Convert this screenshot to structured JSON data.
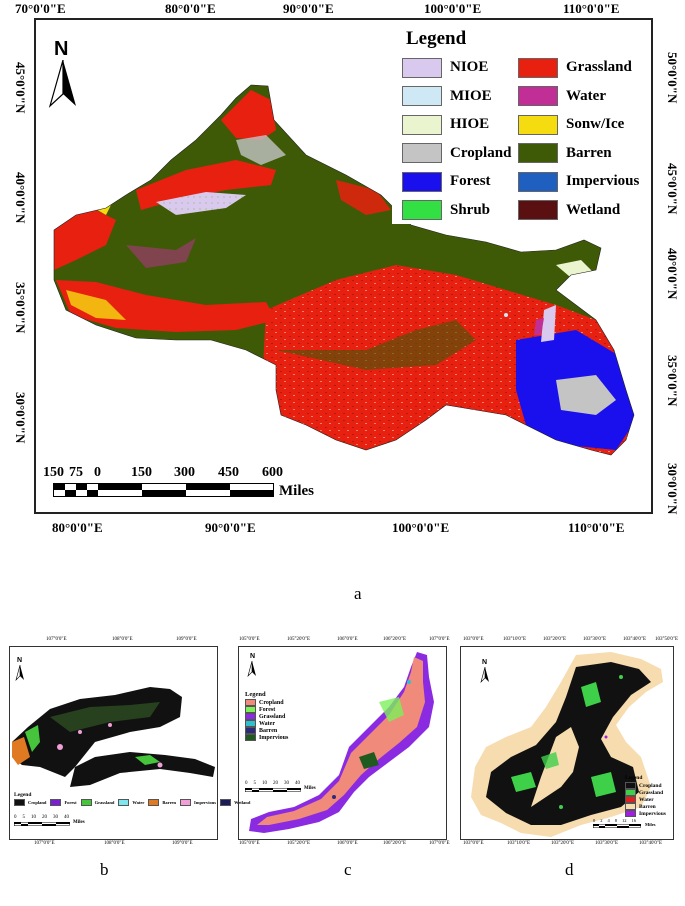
{
  "main_map": {
    "top_ticks": [
      "70°0'0\"E",
      "80°0'0\"E",
      "90°0'0\"E",
      "100°0'0\"E",
      "110°0'0\"E"
    ],
    "bottom_ticks": [
      "80°0'0\"E",
      "90°0'0\"E",
      "100°0'0\"E",
      "110°0'0\"E"
    ],
    "left_ticks": [
      "45°0'0\"N",
      "40°0'0\"N",
      "35°0'0\"N",
      "30°0'0\"N"
    ],
    "right_ticks": [
      "50°0'0\"N",
      "45°0'0\"N",
      "40°0'0\"N",
      "35°0'0\"N",
      "30°0'0\"N"
    ],
    "north": "N",
    "scale_numbers": [
      "150",
      "75",
      "0",
      "150",
      "300",
      "450",
      "600"
    ],
    "scale_unit": "Miles",
    "legend_title": "Legend",
    "legend": [
      {
        "label": "NIOE",
        "color": "#d9c9ee"
      },
      {
        "label": "Grassland",
        "color": "#e8200f"
      },
      {
        "label": "MIOE",
        "color": "#cfe8f5"
      },
      {
        "label": "Water",
        "color": "#c12e95"
      },
      {
        "label": "HIOE",
        "color": "#eaf5cf"
      },
      {
        "label": "Sonw/Ice",
        "color": "#f5dc10"
      },
      {
        "label": "Cropland",
        "color": "#c4c4c4"
      },
      {
        "label": "Barren",
        "color": "#3f5a06"
      },
      {
        "label": "Forest",
        "color": "#1a10ee"
      },
      {
        "label": "Impervious",
        "color": "#1f5fbf"
      },
      {
        "label": "Shrub",
        "color": "#32e043"
      },
      {
        "label": "Wetland",
        "color": "#5a1010"
      }
    ],
    "label": "a"
  },
  "panel_b": {
    "top_ticks": [
      "107°0'0\"E",
      "108°0'0\"E",
      "109°0'0\"E"
    ],
    "bottom_ticks": [
      "107°0'0\"E",
      "108°0'0\"E",
      "109°0'0\"E"
    ],
    "legend_title": "Legend",
    "legend": [
      {
        "label": "Cropland",
        "color": "#111111"
      },
      {
        "label": "Forest",
        "color": "#7a1fd0"
      },
      {
        "label": "Grassland",
        "color": "#46c43c"
      },
      {
        "label": "Water",
        "color": "#7fe6f0"
      },
      {
        "label": "Barren",
        "color": "#e07a22"
      },
      {
        "label": "Impervious",
        "color": "#f0a0d6"
      },
      {
        "label": "Wetland",
        "color": "#1b1b5a"
      }
    ],
    "scale_numbers": [
      "0",
      "5",
      "10",
      "20",
      "30",
      "40"
    ],
    "scale_unit": "Miles",
    "north": "N",
    "label": "b"
  },
  "panel_c": {
    "top_ticks": [
      "105°0'0\"E",
      "105°20'0\"E",
      "106°0'0\"E",
      "106°20'0\"E",
      "107°0'0\"E"
    ],
    "bottom_ticks": [
      "105°0'0\"E",
      "105°20'0\"E",
      "106°0'0\"E",
      "106°20'0\"E",
      "107°0'0\"E"
    ],
    "legend_title": "Legend",
    "legend": [
      {
        "label": "Cropland",
        "color": "#f08a7a"
      },
      {
        "label": "Forest",
        "color": "#7df05a"
      },
      {
        "label": "Grassland",
        "color": "#8a2be2"
      },
      {
        "label": "Water",
        "color": "#2fc0d0"
      },
      {
        "label": "Barren",
        "color": "#2b2b7a"
      },
      {
        "label": "Impervious",
        "color": "#1f5a1f"
      }
    ],
    "scale_numbers": [
      "0",
      "5",
      "10",
      "20",
      "30",
      "40"
    ],
    "scale_unit": "Miles",
    "north": "N",
    "label": "c"
  },
  "panel_d": {
    "top_ticks": [
      "103°0'0\"E",
      "103°10'0\"E",
      "103°20'0\"E",
      "103°30'0\"E",
      "103°40'0\"E",
      "103°50'0\"E"
    ],
    "bottom_ticks": [
      "103°0'0\"E",
      "103°10'0\"E",
      "103°20'0\"E",
      "103°30'0\"E",
      "103°40'0\"E"
    ],
    "legend_title": "Legend",
    "legend": [
      {
        "label": "Cropland",
        "color": "#111111"
      },
      {
        "label": "Grassland",
        "color": "#3fd04a"
      },
      {
        "label": "Water",
        "color": "#e02020"
      },
      {
        "label": "Barren",
        "color": "#f6dcae"
      },
      {
        "label": "Impervious",
        "color": "#a020e0"
      }
    ],
    "scale_numbers": [
      "0",
      "2",
      "4",
      "8",
      "12",
      "16"
    ],
    "scale_unit": "Miles",
    "north": "N",
    "label": "d"
  }
}
